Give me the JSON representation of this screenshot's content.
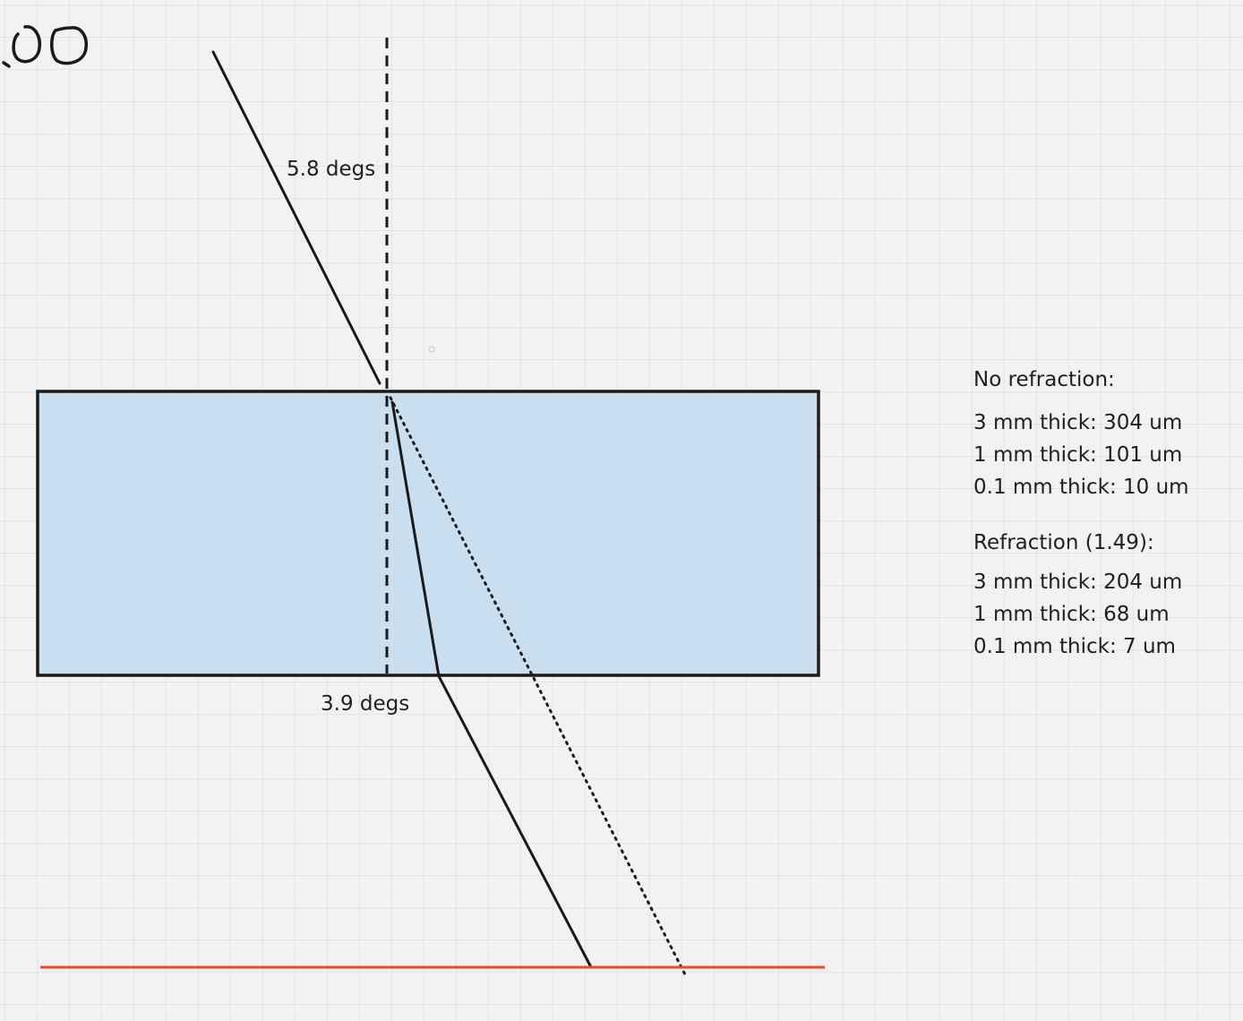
{
  "angles": {
    "incident_label": "5.8 degs",
    "refracted_label": "3.9 degs"
  },
  "corner_sketch": "OO",
  "notes": {
    "no_refraction": {
      "heading": "No refraction:",
      "lines": [
        "3 mm thick: 304 um",
        "1 mm thick: 101 um",
        "0.1 mm thick: 10 um"
      ]
    },
    "refraction": {
      "heading": "Refraction (1.49):",
      "lines": [
        "3 mm thick: 204 um",
        "1 mm thick: 68 um",
        "0.1 mm thick: 7 um"
      ]
    }
  },
  "colors": {
    "background": "#f2f2f2",
    "slab_fill": "#c9dff0",
    "slab_stroke": "#1a1a1a",
    "ray": "#1a1a1a",
    "baseline": "#f0492c"
  }
}
